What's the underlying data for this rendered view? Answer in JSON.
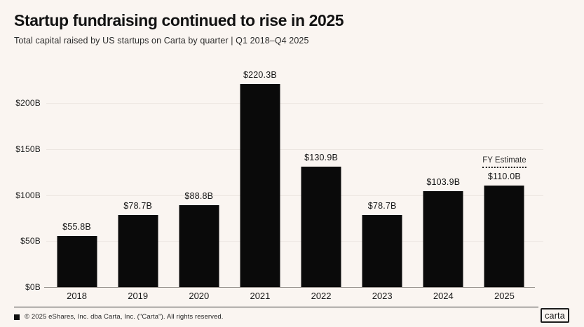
{
  "header": {
    "title": "Startup fundraising continued to rise in 2025",
    "subtitle": "Total capital raised by US startups on Carta by quarter | Q1 2018–Q4 2025"
  },
  "chart_data": {
    "type": "bar",
    "title": "Startup fundraising continued to rise in 2025",
    "xlabel": "",
    "ylabel": "",
    "categories": [
      "2018",
      "2019",
      "2020",
      "2021",
      "2022",
      "2023",
      "2024",
      "2025"
    ],
    "values": [
      55.8,
      78.7,
      88.8,
      220.3,
      130.9,
      78.7,
      103.9,
      110.0
    ],
    "value_labels": [
      "$55.8B",
      "$78.7B",
      "$88.8B",
      "$220.3B",
      "$130.9B",
      "$78.7B",
      "$103.9B",
      "$110.0B"
    ],
    "y_ticks": [
      "$0B",
      "$50B",
      "$100B",
      "$150B",
      "$200B"
    ],
    "y_tick_values": [
      0,
      50,
      100,
      150,
      200
    ],
    "ylim": [
      0,
      220.3
    ],
    "grid": "horizontal",
    "legend": "none",
    "bar_color": "#0a0a0a",
    "annotation": {
      "text": "FY Estimate",
      "applies_to": "2025"
    }
  },
  "footer": {
    "copyright": "© 2025 eShares, Inc. dba Carta, Inc. (\"Carta\"). All rights reserved.",
    "logo_text": "carta"
  },
  "colors": {
    "background": "#faf5f1",
    "bar": "#0a0a0a",
    "gridline": "#ece6e1",
    "axis_line": "#9b9691",
    "text": "#121212"
  }
}
